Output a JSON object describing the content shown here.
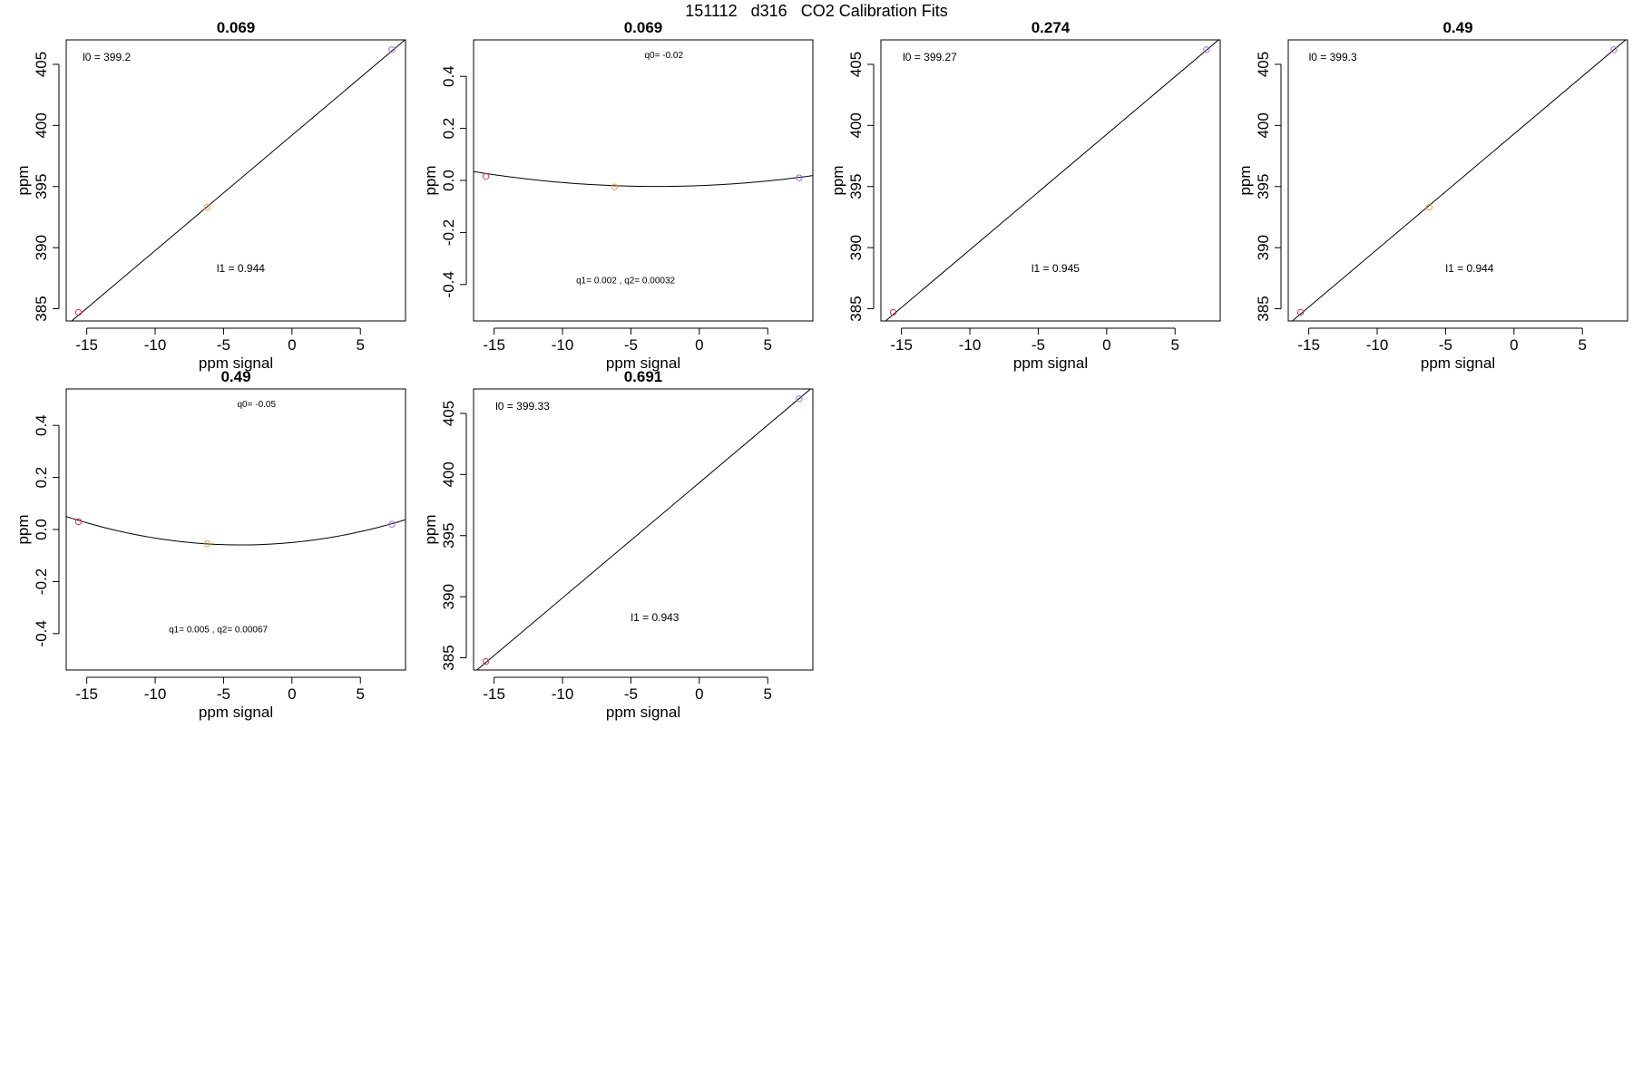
{
  "page_title": "151112   d316   CO2 Calibration Fits",
  "colors": {
    "red": "#e0303c",
    "orange": "#f0a040",
    "purple": "#9a6ef0",
    "line": "#000000"
  },
  "chart_data": [
    {
      "type": "scatter",
      "fit": "linear",
      "title": "0.069",
      "xlabel": "ppm signal",
      "ylabel": "ppm",
      "xlim": [
        -16.5,
        8.3
      ],
      "ylim": [
        384,
        407
      ],
      "xticks": [
        -15,
        -10,
        -5,
        0,
        5
      ],
      "yticks": [
        385,
        390,
        395,
        400,
        405
      ],
      "points": [
        {
          "x": -15.6,
          "y": 384.7,
          "color": "red"
        },
        {
          "x": -6.2,
          "y": 393.3,
          "color": "orange"
        },
        {
          "x": 7.3,
          "y": 406.2,
          "color": "purple"
        }
      ],
      "coefficients": [
        399.2,
        0.944
      ],
      "annotations": [
        {
          "text": "l0 =  399.2",
          "x": -15.3,
          "y": 405.3,
          "size": "normal"
        },
        {
          "text": "l1 =  0.944",
          "x": -5.5,
          "y": 388.0,
          "size": "normal"
        }
      ]
    },
    {
      "type": "scatter",
      "fit": "quadratic",
      "title": "0.069",
      "xlabel": "ppm signal",
      "ylabel": "ppm",
      "xlim": [
        -16.5,
        8.3
      ],
      "ylim": [
        -0.54,
        0.54
      ],
      "xticks": [
        -15,
        -10,
        -5,
        0,
        5
      ],
      "yticks": [
        -0.4,
        -0.2,
        0.0,
        0.2,
        0.4
      ],
      "points": [
        {
          "x": -15.6,
          "y": 0.015,
          "color": "red"
        },
        {
          "x": -6.2,
          "y": -0.025,
          "color": "orange"
        },
        {
          "x": 7.3,
          "y": 0.01,
          "color": "purple"
        }
      ],
      "coefficients": [
        -0.02,
        0.002,
        0.00032
      ],
      "annotations": [
        {
          "text": "q0= -0.02",
          "x": -4.0,
          "y": 0.47,
          "size": "small"
        },
        {
          "text": "q1= 0.002 , q2= 0.00032",
          "x": -9.0,
          "y": -0.395,
          "size": "small"
        }
      ]
    },
    {
      "type": "scatter",
      "fit": "linear",
      "title": "0.274",
      "xlabel": "ppm signal",
      "ylabel": "ppm",
      "xlim": [
        -16.5,
        8.3
      ],
      "ylim": [
        384,
        407
      ],
      "xticks": [
        -15,
        -10,
        -5,
        0,
        5
      ],
      "yticks": [
        385,
        390,
        395,
        400,
        405
      ],
      "points": [
        {
          "x": -15.6,
          "y": 384.7,
          "color": "red"
        },
        {
          "x": 7.3,
          "y": 406.2,
          "color": "purple"
        }
      ],
      "coefficients": [
        399.27,
        0.945
      ],
      "annotations": [
        {
          "text": "l0 =  399.27",
          "x": -14.9,
          "y": 405.3,
          "size": "normal"
        },
        {
          "text": "l1 =  0.945",
          "x": -5.5,
          "y": 388.0,
          "size": "normal"
        }
      ]
    },
    {
      "type": "scatter",
      "fit": "linear",
      "title": "0.49",
      "xlabel": "ppm signal",
      "ylabel": "ppm",
      "xlim": [
        -16.5,
        8.3
      ],
      "ylim": [
        384,
        407
      ],
      "xticks": [
        -15,
        -10,
        -5,
        0,
        5
      ],
      "yticks": [
        385,
        390,
        395,
        400,
        405
      ],
      "points": [
        {
          "x": -15.6,
          "y": 384.7,
          "color": "red"
        },
        {
          "x": -6.2,
          "y": 393.3,
          "color": "orange"
        },
        {
          "x": 7.3,
          "y": 406.2,
          "color": "purple"
        }
      ],
      "coefficients": [
        399.3,
        0.944
      ],
      "annotations": [
        {
          "text": "l0 =  399.3",
          "x": -15.0,
          "y": 405.3,
          "size": "normal"
        },
        {
          "text": "l1 =  0.944",
          "x": -5.0,
          "y": 388.0,
          "size": "normal"
        }
      ]
    },
    {
      "type": "scatter",
      "fit": "quadratic",
      "title": "0.49",
      "xlabel": "ppm signal",
      "ylabel": "ppm",
      "xlim": [
        -16.5,
        8.3
      ],
      "ylim": [
        -0.54,
        0.54
      ],
      "xticks": [
        -15,
        -10,
        -5,
        0,
        5
      ],
      "yticks": [
        -0.4,
        -0.2,
        0.0,
        0.2,
        0.4
      ],
      "points": [
        {
          "x": -15.6,
          "y": 0.03,
          "color": "red"
        },
        {
          "x": -6.2,
          "y": -0.055,
          "color": "orange"
        },
        {
          "x": 7.3,
          "y": 0.02,
          "color": "purple"
        }
      ],
      "coefficients": [
        -0.05,
        0.005,
        0.00067
      ],
      "annotations": [
        {
          "text": "q0= -0.05",
          "x": -4.0,
          "y": 0.47,
          "size": "small"
        },
        {
          "text": "q1= 0.005 , q2= 0.00067",
          "x": -9.0,
          "y": -0.395,
          "size": "small"
        }
      ]
    },
    {
      "type": "scatter",
      "fit": "linear",
      "title": "0.691",
      "xlabel": "ppm signal",
      "ylabel": "ppm",
      "xlim": [
        -16.5,
        8.3
      ],
      "ylim": [
        384,
        407
      ],
      "xticks": [
        -15,
        -10,
        -5,
        0,
        5
      ],
      "yticks": [
        385,
        390,
        395,
        400,
        405
      ],
      "points": [
        {
          "x": -15.6,
          "y": 384.7,
          "color": "red"
        },
        {
          "x": 7.3,
          "y": 406.2,
          "color": "purple"
        }
      ],
      "coefficients": [
        399.33,
        0.943
      ],
      "annotations": [
        {
          "text": "l0 =  399.33",
          "x": -14.9,
          "y": 405.3,
          "size": "normal"
        },
        {
          "text": "l1 =  0.943",
          "x": -5.0,
          "y": 388.0,
          "size": "normal"
        }
      ]
    }
  ]
}
